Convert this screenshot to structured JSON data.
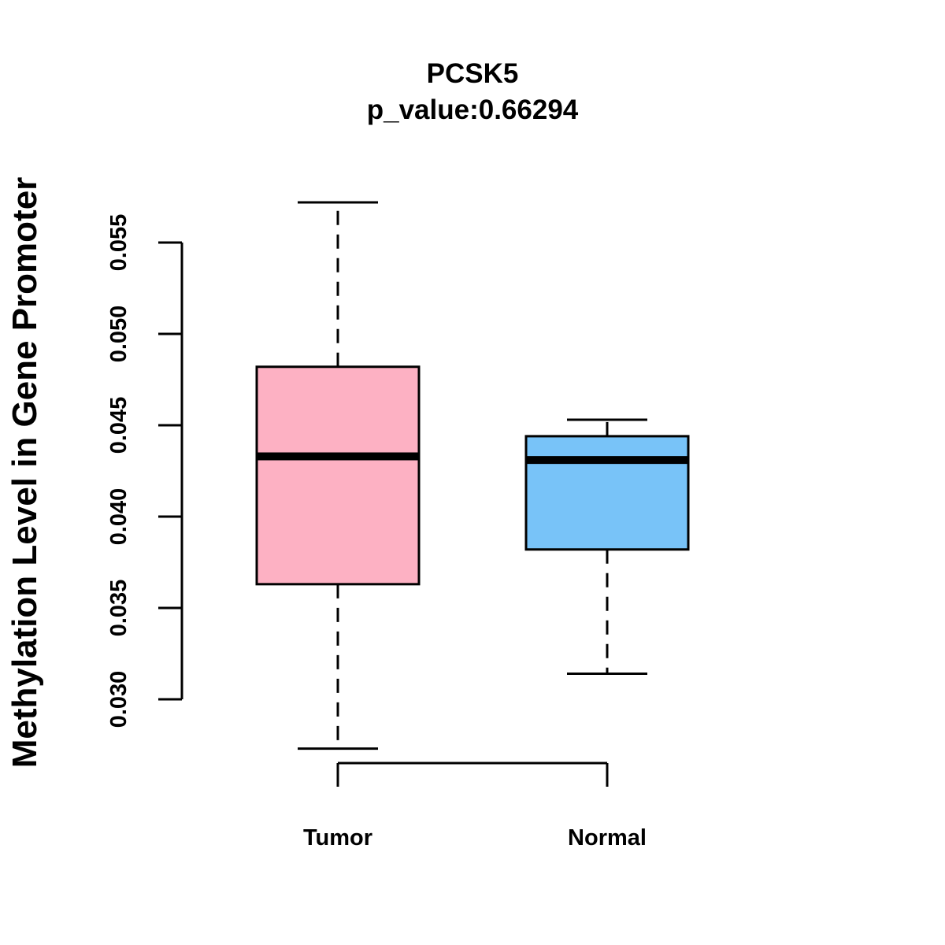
{
  "chart_data": {
    "type": "box",
    "title": "PCSK5",
    "subtitle": "p_value:0.66294",
    "xlabel": "",
    "ylabel": "Methylation Level in Gene Promoter",
    "ylim": [
      0.0265,
      0.0575
    ],
    "yticks": [
      0.03,
      0.035,
      0.04,
      0.045,
      0.05,
      0.055
    ],
    "ytick_labels": [
      "0.030",
      "0.035",
      "0.040",
      "0.045",
      "0.050",
      "0.055"
    ],
    "categories": [
      "Tumor",
      "Normal"
    ],
    "groups": [
      {
        "label": "Tumor",
        "min": 0.0273,
        "q1": 0.0363,
        "median": 0.0433,
        "q3": 0.0482,
        "max": 0.0572,
        "color": "#FDB1C3"
      },
      {
        "label": "Normal",
        "min": 0.0314,
        "q1": 0.0382,
        "median": 0.0431,
        "q3": 0.0444,
        "max": 0.0453,
        "color": "#78C3F8"
      }
    ],
    "grid": false,
    "legend": "none"
  }
}
